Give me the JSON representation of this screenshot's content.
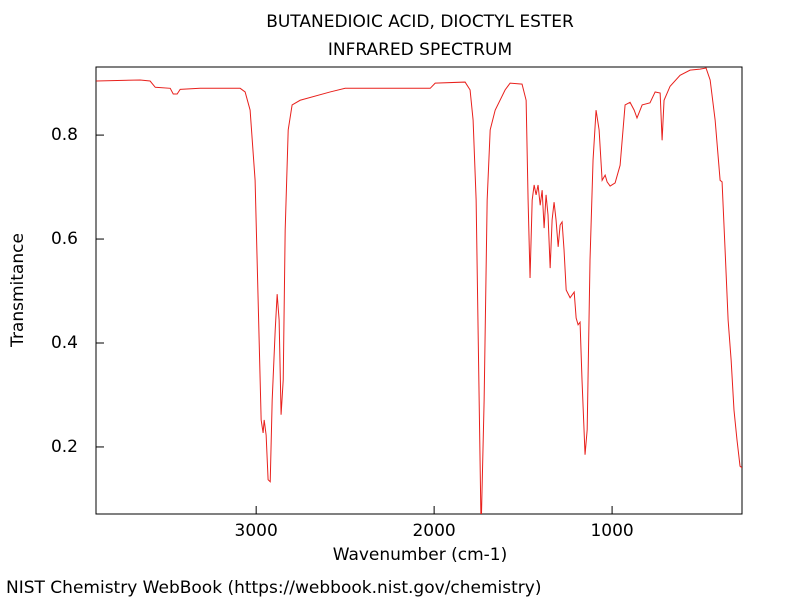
{
  "chart_data": {
    "type": "line",
    "title": "BUTANEDIOIC ACID, DIOCTYL ESTER",
    "subtitle": "INFRARED SPECTRUM",
    "x_label": "Wavenumber (cm-1)",
    "y_label": "Transmitance",
    "xlim": [
      3900,
      270
    ],
    "ylim": [
      0.071,
      0.931
    ],
    "xticks": [
      3000,
      2000,
      1000
    ],
    "yticks": [
      0.2,
      0.4,
      0.6,
      0.8
    ],
    "x": [
      3899,
      3652,
      3596,
      3567,
      3483,
      3466,
      3444,
      3427,
      3315,
      3090,
      3062,
      3034,
      3006,
      2989,
      2972,
      2961,
      2955,
      2944,
      2933,
      2921,
      2910,
      2893,
      2882,
      2871,
      2860,
      2848,
      2837,
      2820,
      2798,
      2753,
      2584,
      2500,
      2022,
      1994,
      1826,
      1798,
      1781,
      1764,
      1747,
      1736,
      1719,
      1702,
      1685,
      1657,
      1601,
      1573,
      1506,
      1483,
      1472,
      1461,
      1449,
      1438,
      1427,
      1416,
      1404,
      1393,
      1382,
      1371,
      1360,
      1348,
      1337,
      1326,
      1315,
      1303,
      1292,
      1281,
      1270,
      1258,
      1236,
      1213,
      1202,
      1191,
      1180,
      1169,
      1152,
      1140,
      1124,
      1107,
      1090,
      1073,
      1056,
      1039,
      1028,
      1011,
      983,
      955,
      927,
      899,
      876,
      860,
      831,
      787,
      758,
      730,
      719,
      708,
      674,
      618,
      562,
      506,
      472,
      449,
      421,
      393,
      382,
      365,
      348,
      331,
      315,
      298,
      281,
      270
    ],
    "series": [
      {
        "color": "#e8201c",
        "values": [
          0.904,
          0.906,
          0.904,
          0.892,
          0.89,
          0.879,
          0.879,
          0.888,
          0.89,
          0.89,
          0.883,
          0.848,
          0.713,
          0.483,
          0.252,
          0.227,
          0.252,
          0.223,
          0.137,
          0.133,
          0.29,
          0.425,
          0.494,
          0.444,
          0.262,
          0.329,
          0.617,
          0.81,
          0.858,
          0.867,
          0.883,
          0.89,
          0.89,
          0.9,
          0.902,
          0.887,
          0.829,
          0.675,
          0.29,
          0.04,
          0.29,
          0.675,
          0.81,
          0.848,
          0.887,
          0.9,
          0.898,
          0.867,
          0.675,
          0.525,
          0.675,
          0.704,
          0.685,
          0.704,
          0.665,
          0.694,
          0.621,
          0.685,
          0.646,
          0.544,
          0.637,
          0.671,
          0.637,
          0.585,
          0.627,
          0.633,
          0.579,
          0.502,
          0.487,
          0.498,
          0.448,
          0.435,
          0.44,
          0.329,
          0.185,
          0.233,
          0.56,
          0.752,
          0.848,
          0.81,
          0.713,
          0.723,
          0.71,
          0.702,
          0.708,
          0.742,
          0.858,
          0.863,
          0.848,
          0.833,
          0.858,
          0.862,
          0.883,
          0.881,
          0.79,
          0.867,
          0.894,
          0.915,
          0.925,
          0.927,
          0.929,
          0.906,
          0.829,
          0.713,
          0.71,
          0.579,
          0.444,
          0.367,
          0.271,
          0.213,
          0.163,
          0.16
        ]
      }
    ]
  },
  "footer": "NIST Chemistry WebBook (https://webbook.nist.gov/chemistry)"
}
